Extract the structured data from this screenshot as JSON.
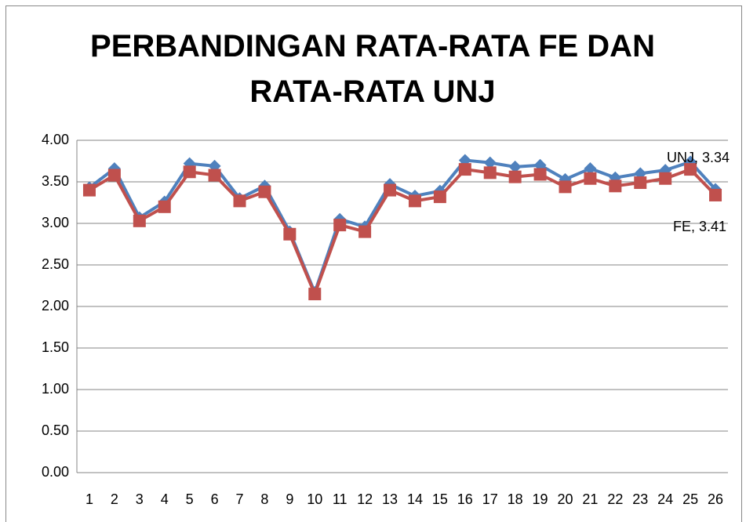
{
  "chart_data": {
    "type": "line",
    "title": "PERBANDINGAN RATA-RATA FE DAN RATA-RATA UNJ",
    "categories": [
      "1",
      "2",
      "3",
      "4",
      "5",
      "6",
      "7",
      "8",
      "9",
      "10",
      "11",
      "12",
      "13",
      "14",
      "15",
      "16",
      "17",
      "18",
      "19",
      "20",
      "21",
      "22",
      "23",
      "24",
      "25",
      "26"
    ],
    "series": [
      {
        "name": "FE",
        "color": "#4f81bd",
        "values": [
          3.43,
          3.66,
          3.07,
          3.26,
          3.72,
          3.69,
          3.3,
          3.45,
          2.9,
          2.17,
          3.05,
          2.96,
          3.47,
          3.33,
          3.39,
          3.76,
          3.73,
          3.68,
          3.7,
          3.53,
          3.66,
          3.55,
          3.6,
          3.64,
          3.74,
          3.41
        ],
        "value_labels": [
          null,
          null,
          null,
          null,
          null,
          null,
          null,
          null,
          null,
          null,
          null,
          null,
          null,
          null,
          null,
          null,
          null,
          null,
          null,
          null,
          null,
          null,
          null,
          null,
          null,
          "FE, 3.41"
        ]
      },
      {
        "name": "UNJ",
        "color": "#c0504d",
        "values": [
          3.4,
          3.58,
          3.03,
          3.2,
          3.62,
          3.58,
          3.27,
          3.38,
          2.87,
          2.15,
          2.98,
          2.9,
          3.4,
          3.27,
          3.32,
          3.65,
          3.61,
          3.56,
          3.59,
          3.44,
          3.54,
          3.45,
          3.49,
          3.54,
          3.65,
          3.34
        ],
        "value_labels": [
          null,
          null,
          null,
          null,
          null,
          null,
          null,
          null,
          null,
          null,
          null,
          null,
          null,
          null,
          null,
          null,
          null,
          null,
          null,
          null,
          null,
          null,
          null,
          null,
          null,
          "UNJ, 3.34"
        ]
      }
    ],
    "ylim": [
      0,
      4
    ],
    "yticks": [
      {
        "value": 0,
        "label": "0.00"
      },
      {
        "value": 0.5,
        "label": "0.50"
      },
      {
        "value": 1,
        "label": "1.00"
      },
      {
        "value": 1.5,
        "label": "1.50"
      },
      {
        "value": 2,
        "label": "2.00"
      },
      {
        "value": 2.5,
        "label": "2.50"
      },
      {
        "value": 3,
        "label": "3.00"
      },
      {
        "value": 3.5,
        "label": "3.50"
      },
      {
        "value": 4,
        "label": "4.00"
      }
    ],
    "grid": true
  }
}
